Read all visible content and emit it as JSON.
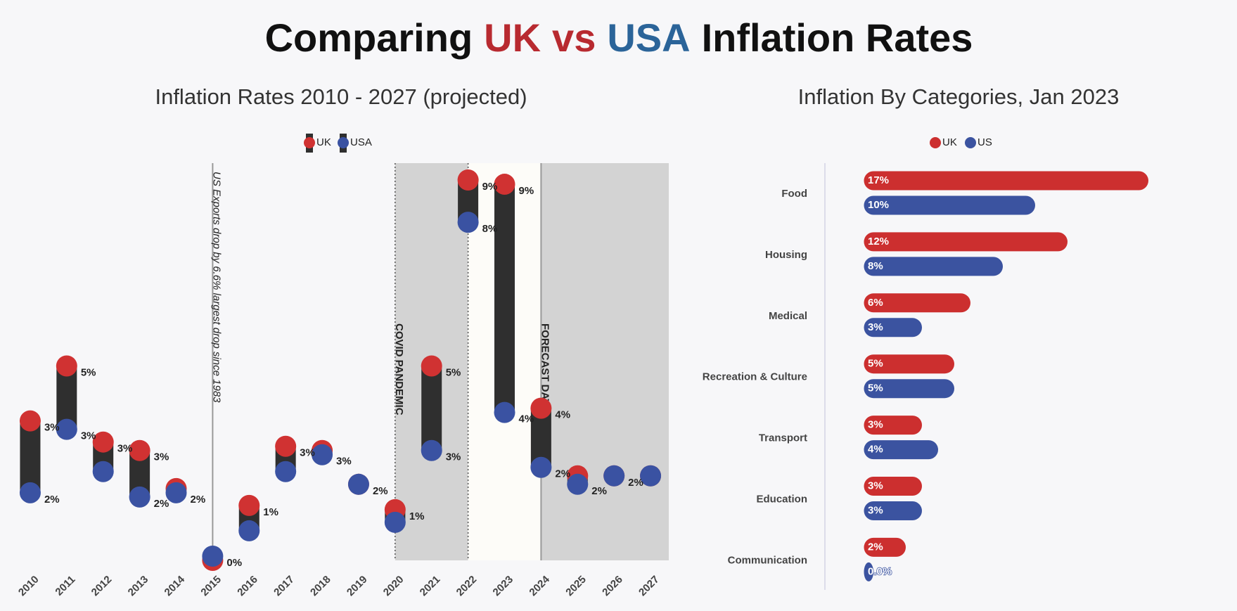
{
  "title": {
    "parts": [
      {
        "text": "Comparing",
        "color": "#111111"
      },
      {
        "text": "UK",
        "color": "#b82a30"
      },
      {
        "text": "vs",
        "color": "#b82a30"
      },
      {
        "text": "USA",
        "color": "#2b6499"
      },
      {
        "text": "Inflation Rates",
        "color": "#111111"
      }
    ]
  },
  "chart_data": [
    {
      "type": "dumbbell",
      "title": "Inflation Rates 2010 - 2027 (projected)",
      "categories": [
        "2010",
        "2011",
        "2012",
        "2013",
        "2014",
        "2015",
        "2016",
        "2017",
        "2018",
        "2019",
        "2020",
        "2021",
        "2022",
        "2023",
        "2024",
        "2025",
        "2026",
        "2027"
      ],
      "series": [
        {
          "name": "UK",
          "color": "#d03232",
          "values": [
            3.3,
            4.6,
            2.8,
            2.6,
            1.7,
            0.0,
            1.3,
            2.7,
            2.6,
            1.8,
            1.2,
            4.6,
            9.0,
            8.9,
            3.6,
            2.0,
            2.0,
            2.0
          ],
          "value_labels": [
            "3%",
            "5%",
            "3%",
            "3%",
            null,
            null,
            "1%",
            "3%",
            null,
            null,
            "1%",
            "5%",
            "9%",
            "9%",
            "4%",
            null,
            null,
            null
          ]
        },
        {
          "name": "USA",
          "color": "#3a52a2",
          "values": [
            1.6,
            3.1,
            2.1,
            1.5,
            1.6,
            0.1,
            0.7,
            2.1,
            2.5,
            1.8,
            0.9,
            2.6,
            8.0,
            3.5,
            2.2,
            1.8,
            2.0,
            2.0
          ],
          "value_labels": [
            "2%",
            "3%",
            null,
            "2%",
            "2%",
            "0%",
            null,
            null,
            "3%",
            "2%",
            null,
            "3%",
            "8%",
            "4%",
            "2%",
            "2%",
            "2%",
            null
          ]
        }
      ],
      "bar_color": "#2f2f2f",
      "ylim": [
        0,
        9.4
      ],
      "regions": [
        {
          "from": "2020",
          "to": "2022",
          "color": "#d3d3d3"
        },
        {
          "from": "2022",
          "to": "2024",
          "color": "#fdfcf8"
        },
        {
          "from": "2024",
          "to": "2027",
          "color": "#d3d3d3"
        }
      ],
      "annotations": [
        {
          "x": "2015",
          "text": "US Exports drop by 6.6% largest drop since 1983",
          "line": "solid"
        },
        {
          "x": "2020",
          "text": "COVID PANDEMIC",
          "line": "dotted"
        },
        {
          "x": "2022",
          "line": "dotted"
        },
        {
          "x": "2024",
          "text": "FORECAST DATA",
          "line": "solid"
        }
      ]
    },
    {
      "type": "bar",
      "orientation": "horizontal",
      "title": "Inflation By Categories, Jan 2023",
      "categories": [
        "Food",
        "Housing",
        "Medical",
        "Recreation & Culture",
        "Transport",
        "Education",
        "Communication"
      ],
      "series": [
        {
          "name": "UK",
          "color": "#cc2f2f",
          "values": [
            17,
            12,
            6,
            5,
            3,
            3,
            2
          ],
          "value_labels": [
            "17%",
            "12%",
            "6%",
            "5%",
            "3%",
            "3%",
            "2%"
          ]
        },
        {
          "name": "US",
          "color": "#3b53a0",
          "values": [
            10,
            8,
            3,
            5,
            4,
            3,
            0
          ],
          "value_labels": [
            "10%",
            "8%",
            "3%",
            "5%",
            "4%",
            "3%",
            "0.0%"
          ]
        }
      ],
      "xlim": [
        -3,
        18.5
      ]
    }
  ]
}
